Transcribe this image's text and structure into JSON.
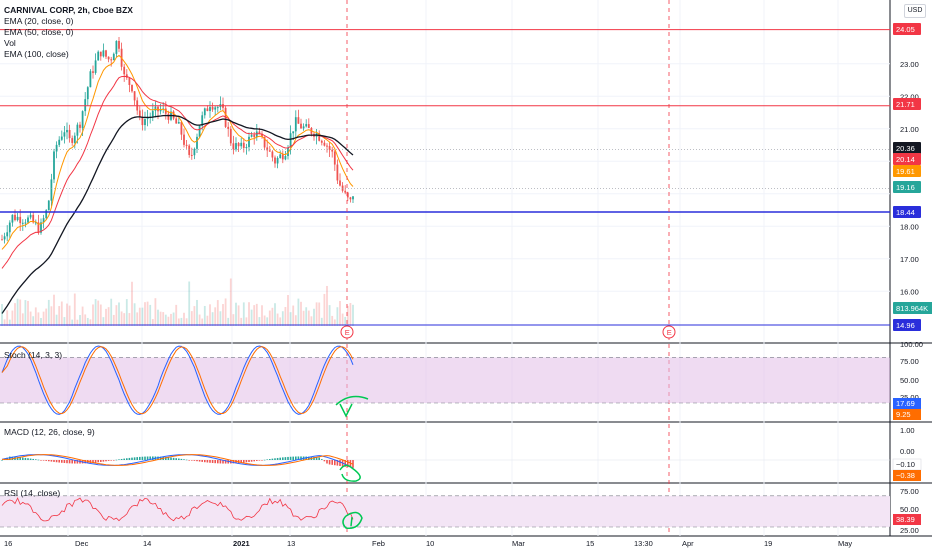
{
  "header": {
    "title": "CARNIVAL CORP, 2h, Cboe BZX",
    "indicators": [
      "EMA (20, close, 0)",
      "EMA (50, close, 0)",
      "Vol",
      "EMA (100, close)"
    ],
    "currency": "USD"
  },
  "panels": {
    "stoch": "Stoch (14, 3, 3)",
    "macd": "MACD (12, 26, close, 9)",
    "rsi": "RSI (14, close)"
  },
  "price_axis": {
    "ticks": [
      "23.00",
      "22.00",
      "21.00",
      "18.00",
      "17.00",
      "16.00"
    ]
  },
  "price_markers": [
    {
      "label": "24.05",
      "color": "#f23645"
    },
    {
      "label": "21.71",
      "color": "#f23645"
    },
    {
      "label": "20.36",
      "color": "#131722"
    },
    {
      "label": "20.14",
      "color": "#f23645"
    },
    {
      "label": "19.61",
      "color": "#ff9800"
    },
    {
      "label": "19.16",
      "color": "#26a69a"
    },
    {
      "label": "18.44",
      "color": "#2a2edb"
    },
    {
      "label": "813.964K",
      "color": "#26a69a"
    },
    {
      "label": "14.96",
      "color": "#2a2edb"
    }
  ],
  "stoch_axis": {
    "ticks": [
      "100.00",
      "75.00",
      "50.00",
      "25.00"
    ],
    "values": [
      "17.69",
      "9.25"
    ]
  },
  "macd_axis": {
    "ticks": [
      "1.00",
      "0.00"
    ],
    "values": [
      "−0.10",
      "−0.38"
    ]
  },
  "rsi_axis": {
    "ticks": [
      "75.00",
      "50.00",
      "25.00"
    ],
    "values": [
      "38.39"
    ]
  },
  "time_axis": {
    "ticks": [
      "16",
      "Dec",
      "14",
      "2021",
      "13",
      "Feb",
      "10",
      "Mar",
      "15",
      "13:30",
      "Apr",
      "19",
      "May"
    ]
  },
  "earnings": [
    "E",
    "E"
  ],
  "colors": {
    "up": "#26a69a",
    "down": "#ef5350",
    "ema20": "#ff9800",
    "ema50": "#f23645",
    "ema100": "#131722",
    "hline_red": "#f23645",
    "hline_blue": "#2a2edb",
    "stoch_band": "#e1bee7",
    "rsi_band": "#f3e5f5"
  }
}
